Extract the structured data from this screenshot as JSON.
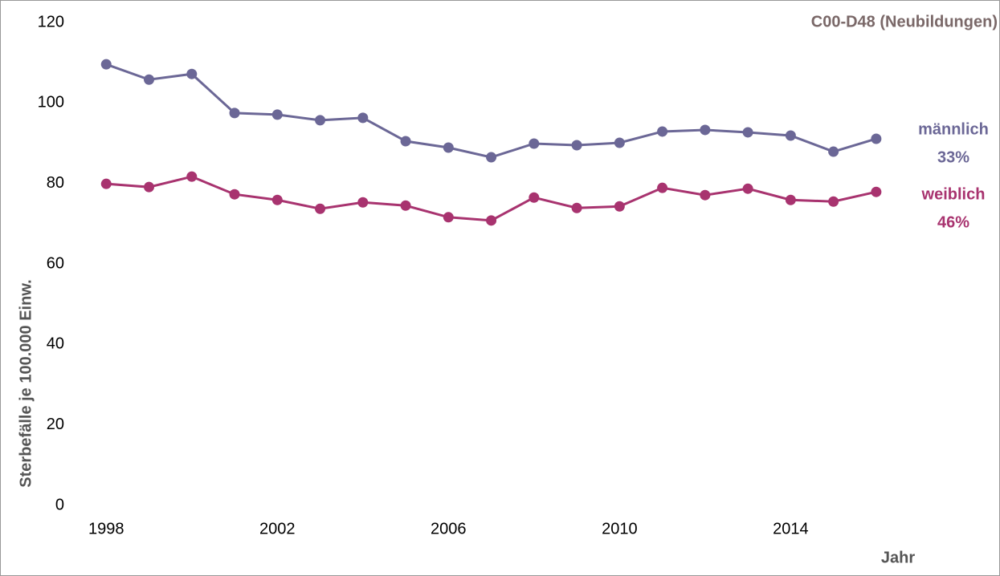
{
  "chart_data": {
    "type": "line",
    "title": "C00-D48 (Neubildungen)",
    "y_label": "Sterbefälle je 100.000 Einw.",
    "x_label": "Jahr",
    "x": [
      1998,
      1999,
      2000,
      2001,
      2002,
      2003,
      2004,
      2005,
      2006,
      2007,
      2008,
      2009,
      2010,
      2011,
      2012,
      2013,
      2014,
      2015,
      2016
    ],
    "series": [
      {
        "name": "männlich",
        "annotation": "33%",
        "color": "#6b6796",
        "values": [
          109.6,
          105.8,
          107.2,
          97.5,
          97.1,
          95.7,
          96.3,
          90.5,
          88.9,
          86.5,
          89.9,
          89.5,
          90.1,
          92.9,
          93.3,
          92.7,
          91.9,
          87.9,
          91.1
        ]
      },
      {
        "name": "weiblich",
        "annotation": "46%",
        "color": "#a8336f",
        "values": [
          79.9,
          79.1,
          81.7,
          77.3,
          75.9,
          73.7,
          75.3,
          74.5,
          71.6,
          70.8,
          76.5,
          73.9,
          74.3,
          78.9,
          77.1,
          78.7,
          75.9,
          75.5,
          77.9
        ]
      }
    ],
    "xlim": [
      1997,
      2018.8
    ],
    "xticks": [
      1998,
      2002,
      2006,
      2010,
      2014
    ],
    "ylim": [
      0,
      120
    ],
    "yticks": [
      0,
      20,
      40,
      60,
      80,
      100,
      120
    ],
    "grid": false
  }
}
